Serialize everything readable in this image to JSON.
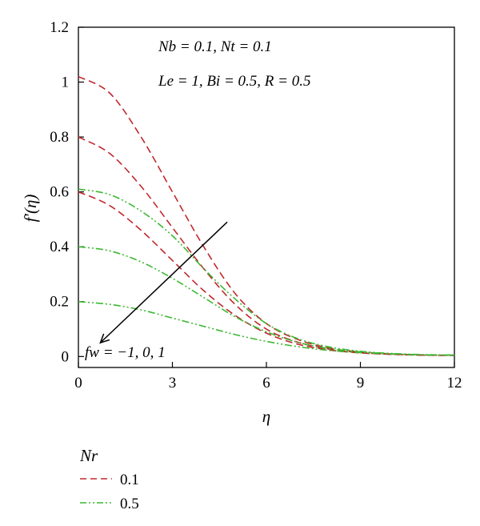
{
  "chart_data": {
    "type": "line",
    "xlabel": "η",
    "ylabel": "f′(η)",
    "xlim": [
      0,
      12
    ],
    "ylim": [
      -0.04,
      1.2
    ],
    "x_ticks": [
      "0",
      "3",
      "6",
      "9",
      "12"
    ],
    "y_ticks": [
      "0",
      "0.2",
      "0.4",
      "0.6",
      "0.8",
      "1",
      "1.2"
    ],
    "annotations": {
      "params_line1": "Nb = 0.1, Nt = 0.1",
      "params_line2": "Le = 1, Bi = 0.5, R = 0.5",
      "arrow_label": "fw = −1, 0, 1"
    },
    "arrow": {
      "from": [
        4.75,
        0.49
      ],
      "to": [
        0.7,
        0.05
      ]
    },
    "legend": {
      "title": "Nr",
      "placement": "below-plot"
    },
    "series": [
      {
        "name": "0.1",
        "fw": "-1",
        "color": "#c0282d",
        "dash": "dashed",
        "x": [
          0,
          1,
          2,
          3,
          4,
          5,
          6,
          7,
          8,
          9,
          10,
          11,
          12
        ],
        "y": [
          1.02,
          0.96,
          0.8,
          0.6,
          0.4,
          0.23,
          0.12,
          0.062,
          0.031,
          0.016,
          0.009,
          0.005,
          0.004
        ]
      },
      {
        "name": "0.1",
        "fw": "0",
        "color": "#c0282d",
        "dash": "dashed",
        "x": [
          0,
          1,
          2,
          3,
          4,
          5,
          6,
          7,
          8,
          9,
          10,
          11,
          12
        ],
        "y": [
          0.8,
          0.74,
          0.62,
          0.47,
          0.32,
          0.19,
          0.1,
          0.052,
          0.027,
          0.014,
          0.008,
          0.005,
          0.004
        ]
      },
      {
        "name": "0.1",
        "fw": "1",
        "color": "#c0282d",
        "dash": "dashed",
        "x": [
          0,
          1,
          2,
          3,
          4,
          5,
          6,
          7,
          8,
          9,
          10,
          11,
          12
        ],
        "y": [
          0.6,
          0.55,
          0.46,
          0.35,
          0.24,
          0.15,
          0.085,
          0.045,
          0.024,
          0.013,
          0.008,
          0.005,
          0.004
        ]
      },
      {
        "name": "0.5",
        "fw": "-1",
        "color": "#3cb832",
        "dash": "dash-dot-dot",
        "x": [
          0,
          1,
          2,
          3,
          4,
          5,
          6,
          7,
          8,
          9,
          10,
          11,
          12
        ],
        "y": [
          0.61,
          0.59,
          0.53,
          0.44,
          0.32,
          0.21,
          0.12,
          0.065,
          0.035,
          0.019,
          0.011,
          0.007,
          0.005
        ]
      },
      {
        "name": "0.5",
        "fw": "0",
        "color": "#3cb832",
        "dash": "dash-dot-dot",
        "x": [
          0,
          1,
          2,
          3,
          4,
          5,
          6,
          7,
          8,
          9,
          10,
          11,
          12
        ],
        "y": [
          0.4,
          0.385,
          0.345,
          0.285,
          0.215,
          0.145,
          0.09,
          0.052,
          0.029,
          0.017,
          0.01,
          0.006,
          0.005
        ]
      },
      {
        "name": "0.5",
        "fw": "1",
        "color": "#3cb832",
        "dash": "dash-dot-dot",
        "x": [
          0,
          1,
          2,
          3,
          4,
          5,
          6,
          7,
          8,
          9,
          10,
          11,
          12
        ],
        "y": [
          0.2,
          0.19,
          0.17,
          0.14,
          0.11,
          0.08,
          0.055,
          0.036,
          0.022,
          0.014,
          0.009,
          0.006,
          0.005
        ]
      }
    ]
  }
}
